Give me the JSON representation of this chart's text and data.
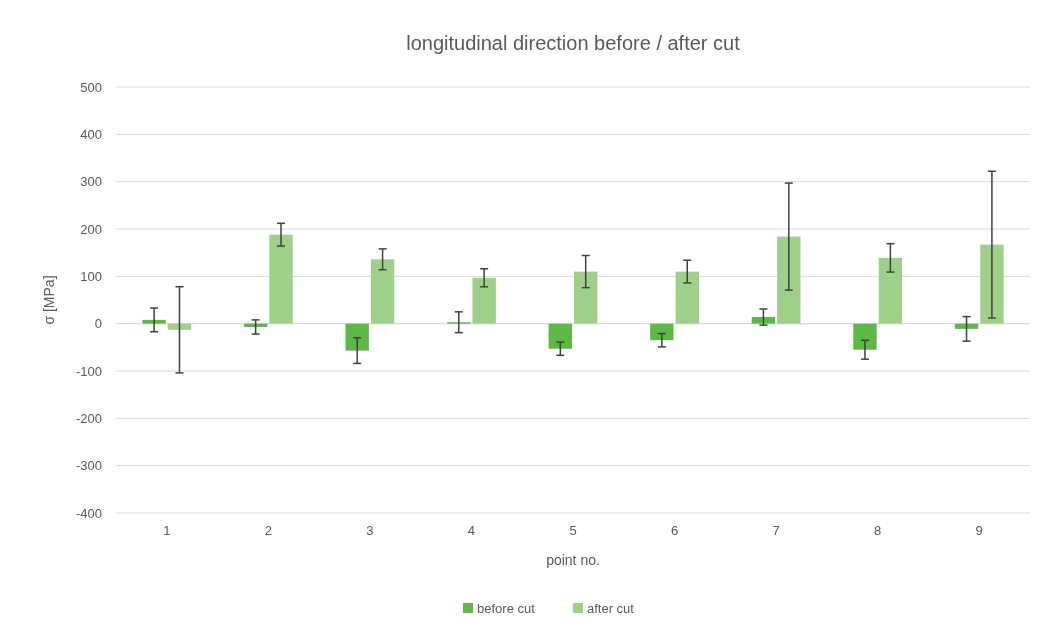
{
  "chart_data": {
    "type": "bar",
    "title": "longitudinal direction before / after cut",
    "xlabel": "point no.",
    "ylabel": "σ [MPa]",
    "categories": [
      "1",
      "2",
      "3",
      "4",
      "5",
      "6",
      "7",
      "8",
      "9"
    ],
    "series": [
      {
        "name": "before cut",
        "color": "#5cb946",
        "values": [
          8,
          -7,
          -57,
          3,
          -53,
          -35,
          14,
          -55,
          -11
        ],
        "errors": [
          25,
          15,
          27,
          22,
          14,
          14,
          17,
          20,
          26
        ]
      },
      {
        "name": "after cut",
        "color": "#9fd08a",
        "values": [
          -13,
          188,
          136,
          97,
          110,
          110,
          184,
          139,
          167
        ],
        "errors": [
          91,
          24,
          22,
          19,
          34,
          24,
          113,
          30,
          155
        ]
      }
    ],
    "ylim": [
      -400,
      500
    ],
    "yticks": [
      -400,
      -300,
      -200,
      -100,
      0,
      100,
      200,
      300,
      400,
      500
    ],
    "grid": "y",
    "legend": "bottom"
  }
}
